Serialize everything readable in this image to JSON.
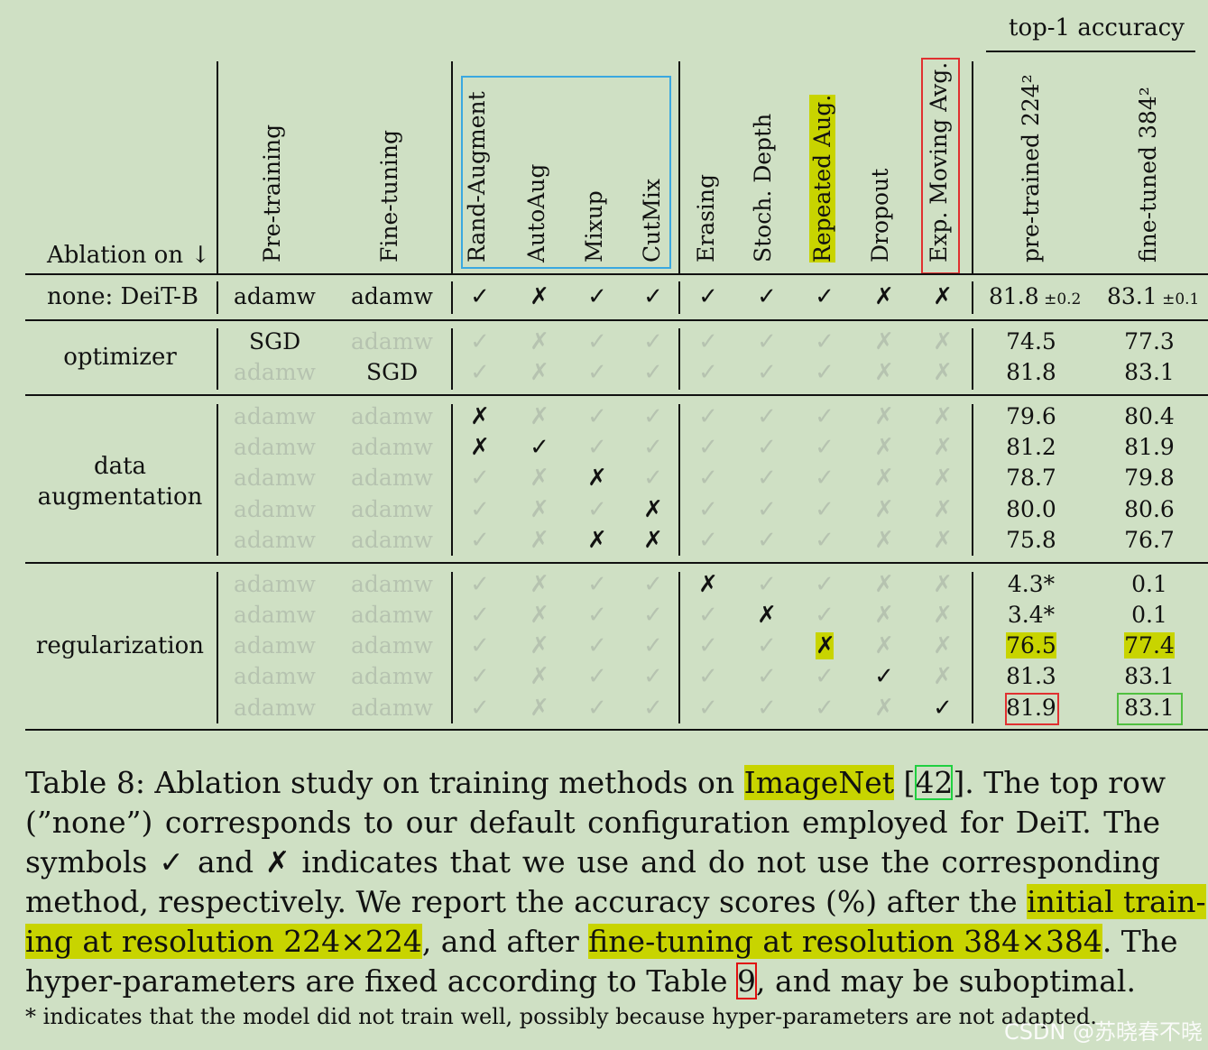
{
  "header": {
    "ablation_on": "Ablation on ↓",
    "group_top": "top-1 accuracy",
    "columns": [
      "Pre-training",
      "Fine-tuning",
      "Rand-Augment",
      "AutoAug",
      "Mixup",
      "CutMix",
      "Erasing",
      "Stoch. Depth",
      "Repeated Aug.",
      "Dropout",
      "Exp. Moving Avg.",
      "pre-trained 224²",
      "fine-tuned 384²"
    ]
  },
  "colors": {
    "highlight": "#c8d400",
    "blue_box": "#3aa8e0",
    "red_box": "#e03030",
    "green_box": "#50c040",
    "bg": "#cfe0c4",
    "faint": "#b6c3b0"
  },
  "rows": [
    {
      "group": "none: DeiT-B",
      "pre": "adamw",
      "fine": "adamw",
      "marks": [
        "✓",
        "✗",
        "✓",
        "✓",
        "✓",
        "✓",
        "✓",
        "✗",
        "✗"
      ],
      "active": [
        1,
        1,
        1,
        1,
        1,
        1,
        1,
        1,
        1
      ],
      "acc224": "81.8",
      "acc224_pm": "±0.2",
      "acc384": "83.1",
      "acc384_pm": "±0.1"
    },
    {
      "pre": "SGD",
      "fine": "adamw",
      "marks": [
        "✓",
        "✗",
        "✓",
        "✓",
        "✓",
        "✓",
        "✓",
        "✗",
        "✗"
      ],
      "active": [
        0,
        0,
        0,
        0,
        0,
        0,
        0,
        0,
        0
      ],
      "pre_active": 1,
      "fine_active": 0,
      "acc224": "74.5",
      "acc384": "77.3"
    },
    {
      "pre": "adamw",
      "fine": "SGD",
      "marks": [
        "✓",
        "✗",
        "✓",
        "✓",
        "✓",
        "✓",
        "✓",
        "✗",
        "✗"
      ],
      "active": [
        0,
        0,
        0,
        0,
        0,
        0,
        0,
        0,
        0
      ],
      "pre_active": 0,
      "fine_active": 1,
      "acc224": "81.8",
      "acc384": "83.1"
    },
    {
      "pre": "adamw",
      "fine": "adamw",
      "marks": [
        "✗",
        "✗",
        "✓",
        "✓",
        "✓",
        "✓",
        "✓",
        "✗",
        "✗"
      ],
      "active": [
        1,
        0,
        0,
        0,
        0,
        0,
        0,
        0,
        0
      ],
      "acc224": "79.6",
      "acc384": "80.4"
    },
    {
      "pre": "adamw",
      "fine": "adamw",
      "marks": [
        "✗",
        "✓",
        "✓",
        "✓",
        "✓",
        "✓",
        "✓",
        "✗",
        "✗"
      ],
      "active": [
        1,
        1,
        0,
        0,
        0,
        0,
        0,
        0,
        0
      ],
      "acc224": "81.2",
      "acc384": "81.9"
    },
    {
      "pre": "adamw",
      "fine": "adamw",
      "marks": [
        "✓",
        "✗",
        "✗",
        "✓",
        "✓",
        "✓",
        "✓",
        "✗",
        "✗"
      ],
      "active": [
        0,
        0,
        1,
        0,
        0,
        0,
        0,
        0,
        0
      ],
      "acc224": "78.7",
      "acc384": "79.8"
    },
    {
      "pre": "adamw",
      "fine": "adamw",
      "marks": [
        "✓",
        "✗",
        "✓",
        "✗",
        "✓",
        "✓",
        "✓",
        "✗",
        "✗"
      ],
      "active": [
        0,
        0,
        0,
        1,
        0,
        0,
        0,
        0,
        0
      ],
      "acc224": "80.0",
      "acc384": "80.6"
    },
    {
      "pre": "adamw",
      "fine": "adamw",
      "marks": [
        "✓",
        "✗",
        "✗",
        "✗",
        "✓",
        "✓",
        "✓",
        "✗",
        "✗"
      ],
      "active": [
        0,
        0,
        1,
        1,
        0,
        0,
        0,
        0,
        0
      ],
      "acc224": "75.8",
      "acc384": "76.7"
    },
    {
      "pre": "adamw",
      "fine": "adamw",
      "marks": [
        "✓",
        "✗",
        "✓",
        "✓",
        "✗",
        "✓",
        "✓",
        "✗",
        "✗"
      ],
      "active": [
        0,
        0,
        0,
        0,
        1,
        0,
        0,
        0,
        0
      ],
      "acc224": "4.3*",
      "acc384": "0.1"
    },
    {
      "pre": "adamw",
      "fine": "adamw",
      "marks": [
        "✓",
        "✗",
        "✓",
        "✓",
        "✓",
        "✗",
        "✓",
        "✗",
        "✗"
      ],
      "active": [
        0,
        0,
        0,
        0,
        0,
        1,
        0,
        0,
        0
      ],
      "acc224": "3.4*",
      "acc384": "0.1"
    },
    {
      "pre": "adamw",
      "fine": "adamw",
      "marks": [
        "✓",
        "✗",
        "✓",
        "✓",
        "✓",
        "✓",
        "✗",
        "✗",
        "✗"
      ],
      "active": [
        0,
        0,
        0,
        0,
        0,
        0,
        1,
        0,
        0
      ],
      "acc224": "76.5",
      "acc384": "77.4",
      "hl": 1
    },
    {
      "pre": "adamw",
      "fine": "adamw",
      "marks": [
        "✓",
        "✗",
        "✓",
        "✓",
        "✓",
        "✓",
        "✓",
        "✓",
        "✗"
      ],
      "active": [
        0,
        0,
        0,
        0,
        0,
        0,
        0,
        1,
        0
      ],
      "acc224": "81.3",
      "acc384": "83.1"
    },
    {
      "pre": "adamw",
      "fine": "adamw",
      "marks": [
        "✓",
        "✗",
        "✓",
        "✓",
        "✓",
        "✓",
        "✓",
        "✗",
        "✓"
      ],
      "active": [
        0,
        0,
        0,
        0,
        0,
        0,
        0,
        0,
        1
      ],
      "acc224": "81.9",
      "acc384": "83.1",
      "box": 1
    }
  ],
  "groups": {
    "optimizer": "optimizer",
    "data1": "data",
    "data2": "augmentation",
    "regularization": "regularization"
  },
  "caption": {
    "l1a": "Table 8:  Ablation study on training methods on ",
    "l1b": "ImageNet",
    "l1c": " [",
    "l1d": "42",
    "l1e": "].  The top row",
    "l2": "(”none”) corresponds to our default configuration employed for DeiT. The",
    "l3a": "symbols ",
    "l3b": "✓",
    "l3c": " and ",
    "l3d": "✗",
    "l3e": " indicates that we use and do not use the corresponding",
    "l4a": "method, respectively. We report the accuracy scores (%) after the ",
    "l4b": "initial train-",
    "l5a": "ing at resolution 224×224",
    "l5b": ", and after ",
    "l5c": "fine-tuning at resolution 384×384",
    "l5d": ".  The",
    "l6a": "hyper-parameters are fixed according to Table ",
    "l6b": "9",
    "l6c": ", and may be suboptimal.",
    "note": "* indicates that the model did not train well, possibly because hyper-parameters are not adapted.",
    "watermark": "CSDN @苏晓春不晓"
  }
}
